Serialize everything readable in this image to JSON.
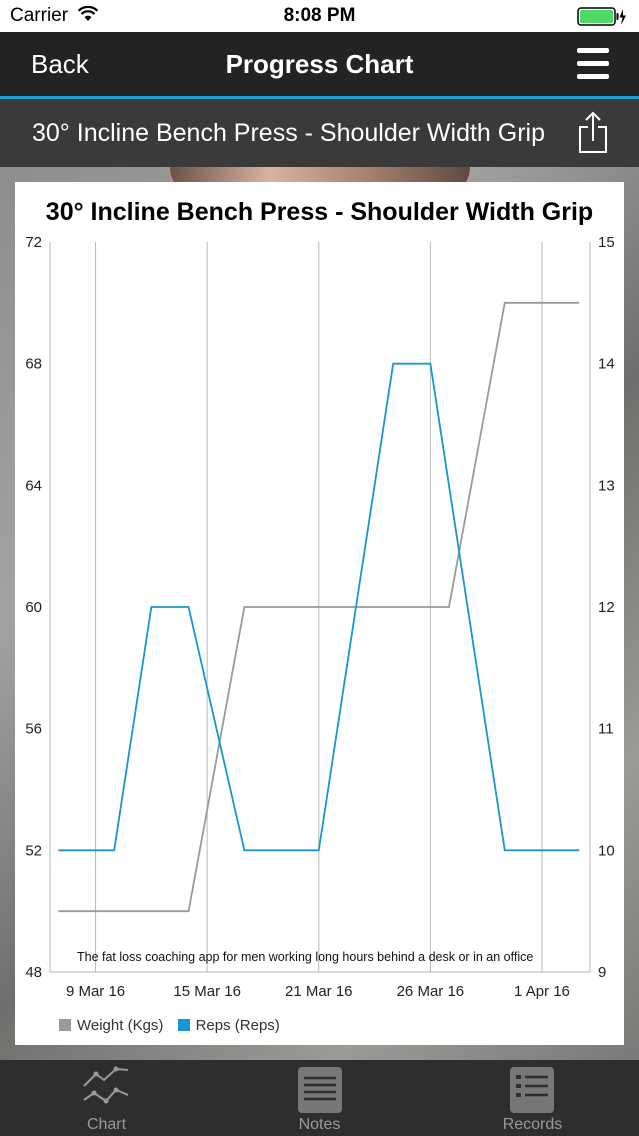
{
  "status_bar": {
    "carrier": "Carrier",
    "time": "8:08 PM"
  },
  "nav": {
    "back_label": "Back",
    "title": "Progress Chart"
  },
  "exercise_title": "30° Incline Bench Press - Shoulder Width Grip",
  "chart_footnote": "The fat loss coaching app for men working long hours behind a desk or in an office",
  "chart_data": {
    "type": "line",
    "title": "30° Incline Bench Press - Shoulder Width Grip",
    "x": [
      "2016-03-07",
      "2016-03-08",
      "2016-03-09",
      "2016-03-10",
      "2016-03-11",
      "2016-03-12",
      "2016-03-13",
      "2016-03-14",
      "2016-03-15",
      "2016-03-16",
      "2016-03-17",
      "2016-03-18",
      "2016-03-19",
      "2016-03-20",
      "2016-03-21",
      "2016-03-22",
      "2016-03-23",
      "2016-03-24",
      "2016-03-25",
      "2016-03-26",
      "2016-03-27",
      "2016-03-28",
      "2016-03-29",
      "2016-03-30",
      "2016-03-31",
      "2016-04-01",
      "2016-04-02"
    ],
    "x_ticks": [
      "9 Mar 16",
      "15 Mar 16",
      "21 Mar 16",
      "26 Mar 16",
      "1 Apr 16"
    ],
    "series": [
      {
        "name": "Weight (Kgs)",
        "axis": "left",
        "color": "#9a9a9a",
        "points": [
          [
            "2016-03-07",
            50
          ],
          [
            "2016-03-14",
            50
          ],
          [
            "2016-03-17",
            60
          ],
          [
            "2016-03-28",
            60
          ],
          [
            "2016-03-31",
            70
          ],
          [
            "2016-04-04",
            70
          ]
        ]
      },
      {
        "name": "Reps (Reps)",
        "axis": "right",
        "color": "#1a95d2",
        "points": [
          [
            "2016-03-07",
            10
          ],
          [
            "2016-03-10",
            10
          ],
          [
            "2016-03-12",
            12
          ],
          [
            "2016-03-14",
            12
          ],
          [
            "2016-03-17",
            10
          ],
          [
            "2016-03-21",
            10
          ],
          [
            "2016-03-25",
            14
          ],
          [
            "2016-03-27",
            14
          ],
          [
            "2016-03-31",
            10
          ],
          [
            "2016-04-04",
            10
          ]
        ]
      }
    ],
    "left_ylim": [
      48,
      72
    ],
    "left_ticks": [
      48,
      52,
      56,
      60,
      64,
      68,
      72
    ],
    "right_ylim": [
      9,
      15
    ],
    "right_ticks": [
      9,
      10,
      11,
      12,
      13,
      14,
      15
    ],
    "grid": "vertical",
    "legend_position": "bottom-left"
  },
  "tabs": [
    {
      "label": "Chart",
      "icon": "line-chart-icon"
    },
    {
      "label": "Notes",
      "icon": "notes-icon"
    },
    {
      "label": "Records",
      "icon": "records-icon"
    }
  ]
}
